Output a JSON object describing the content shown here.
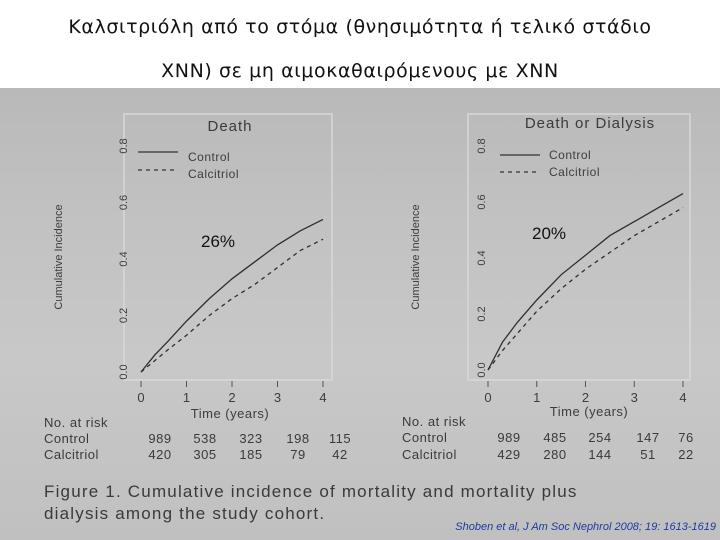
{
  "slide": {
    "title_line1": "Καλσιτριόλη από το στόμα (θνησιμότητα ή τελικό στάδιο",
    "title_line2": "ΧΝΝ) σε μη αιμοκαθαιρόμενους με ΧΝΝ",
    "citation": "Shoben et al, J Am Soc Nephrol 2008; 19: 1613-1619"
  },
  "figure": {
    "caption_line1": "Figure 1.  Cumulative incidence of mortality and mortality plus",
    "caption_line2": "dialysis among the study cohort."
  },
  "chart_data": [
    {
      "type": "line",
      "title": "Death",
      "xlabel": "Time (years)",
      "ylabel": "Cumulative Incidence",
      "xlim": [
        0,
        4
      ],
      "ylim": [
        0,
        0.8
      ],
      "x_ticks": [
        "0",
        "1",
        "2",
        "3",
        "4"
      ],
      "y_ticks": [
        "0.0",
        "0.2",
        "0.4",
        "0.6",
        "0.8"
      ],
      "legend": [
        "Control",
        "Calcitriol"
      ],
      "legend_placement": "top-left",
      "annotation": "26%",
      "series": [
        {
          "name": "Control",
          "style": "solid",
          "x": [
            0,
            0.3,
            0.6,
            1.0,
            1.5,
            2.0,
            2.5,
            3.0,
            3.5,
            4.0
          ],
          "y": [
            0,
            0.06,
            0.11,
            0.18,
            0.26,
            0.33,
            0.39,
            0.45,
            0.5,
            0.54
          ]
        },
        {
          "name": "Calcitriol",
          "style": "dashed",
          "x": [
            0,
            0.3,
            0.6,
            1.0,
            1.5,
            2.0,
            2.5,
            3.0,
            3.5,
            4.0
          ],
          "y": [
            0,
            0.04,
            0.08,
            0.13,
            0.2,
            0.26,
            0.31,
            0.37,
            0.43,
            0.47
          ]
        }
      ],
      "at_risk": {
        "header": "No. at risk",
        "rows": [
          {
            "label": "Control",
            "values": [
              "989",
              "538",
              "323",
              "198",
              "115"
            ]
          },
          {
            "label": "Calcitriol",
            "values": [
              "420",
              "305",
              "185",
              "79",
              "42"
            ]
          }
        ]
      }
    },
    {
      "type": "line",
      "title": "Death or Dialysis",
      "xlabel": "Time (years)",
      "ylabel": "Cumulative Incidence",
      "xlim": [
        0,
        4
      ],
      "ylim": [
        0,
        0.8
      ],
      "x_ticks": [
        "0",
        "1",
        "2",
        "3",
        "4"
      ],
      "y_ticks": [
        "0.0",
        "0.2",
        "0.4",
        "0.6",
        "0.8"
      ],
      "legend": [
        "Control",
        "Calcitriol"
      ],
      "legend_placement": "top-left",
      "annotation": "20%",
      "series": [
        {
          "name": "Control",
          "style": "solid",
          "x": [
            0,
            0.3,
            0.6,
            1.0,
            1.5,
            2.0,
            2.5,
            3.0,
            3.5,
            4.0
          ],
          "y": [
            0,
            0.1,
            0.17,
            0.25,
            0.34,
            0.41,
            0.48,
            0.53,
            0.58,
            0.63
          ]
        },
        {
          "name": "Calcitriol",
          "style": "dashed",
          "x": [
            0,
            0.3,
            0.6,
            1.0,
            1.5,
            2.0,
            2.5,
            3.0,
            3.5,
            4.0
          ],
          "y": [
            0,
            0.07,
            0.13,
            0.21,
            0.29,
            0.36,
            0.42,
            0.48,
            0.53,
            0.58
          ]
        }
      ],
      "at_risk": {
        "header": "No. at risk",
        "rows": [
          {
            "label": "Control",
            "values": [
              "989",
              "485",
              "254",
              "147",
              "76"
            ]
          },
          {
            "label": "Calcitriol",
            "values": [
              "429",
              "280",
              "144",
              "51",
              "22"
            ]
          }
        ]
      }
    }
  ]
}
